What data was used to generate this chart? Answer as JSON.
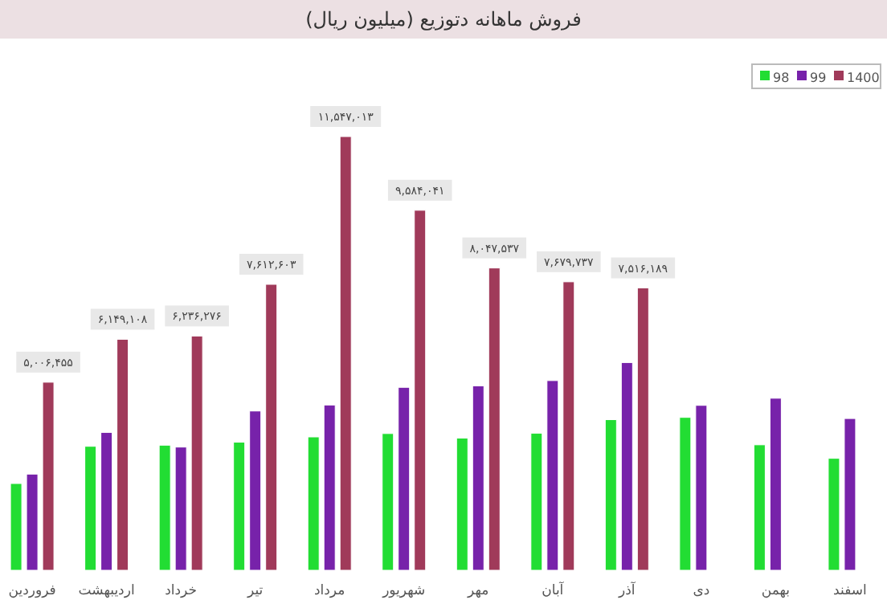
{
  "chart_data": {
    "type": "bar",
    "title": "فروش ماهانه دتوزیع (میلیون ریال)",
    "categories": [
      "فروردین",
      "اردیبهشت",
      "خرداد",
      "تیر",
      "مرداد",
      "شهریور",
      "مهر",
      "آبان",
      "آذر",
      "دی",
      "بهمن",
      "اسفند"
    ],
    "series": [
      {
        "name": "98",
        "color": "#22dd33",
        "values": [
          2310000,
          3300000,
          3330000,
          3410000,
          3550000,
          3640000,
          3520000,
          3650000,
          4010000,
          4070000,
          3340000,
          2980000
        ]
      },
      {
        "name": "99",
        "color": "#7722aa",
        "values": [
          2560000,
          3670000,
          3280000,
          4240000,
          4400000,
          4870000,
          4910000,
          5050000,
          5530000,
          4390000,
          4580000,
          4040000
        ]
      },
      {
        "name": "1400",
        "color": "#a03a5a",
        "values": [
          5006455,
          6149108,
          6236276,
          7612603,
          11547013,
          9584041,
          8047537,
          7679737,
          7516189,
          null,
          null,
          null
        ],
        "value_labels": [
          "۵,۰۰۶,۴۵۵",
          "۶,۱۴۹,۱۰۸",
          "۶,۲۳۶,۲۷۶",
          "۷,۶۱۲,۶۰۳",
          "۱۱,۵۴۷,۰۱۳",
          "۹,۵۸۴,۰۴۱",
          "۸,۰۴۷,۵۳۷",
          "۷,۶۷۹,۷۳۷",
          "۷,۵۱۶,۱۸۹",
          null,
          null,
          null
        ]
      }
    ],
    "legend": "top right",
    "grid": false
  }
}
